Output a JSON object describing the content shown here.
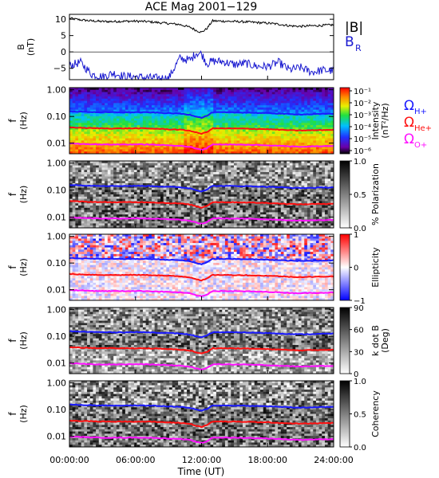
{
  "title": "ACE Mag 2001−129",
  "x_axis": {
    "label": "Time (UT)",
    "ticks": [
      "00:00:00",
      "06:00:00",
      "12:00:00",
      "18:00:00",
      "24:00:00"
    ],
    "range_hours": [
      0,
      24
    ]
  },
  "legend": {
    "b_mag": "|B|",
    "b_r_main": "B",
    "b_r_sub": "R",
    "h_main": "Ω",
    "h_sub": "H+",
    "he_main": "Ω",
    "he_sub": "He+",
    "o_main": "Ω",
    "o_sub": "O+"
  },
  "colors": {
    "b_mag": "#000000",
    "b_r": "#1a1ad0",
    "h": "#1a1aff",
    "he": "#ff1010",
    "o": "#ff10ff"
  },
  "panels": [
    {
      "id": "field",
      "ylabel": "B",
      "ylabel2": "(nT)",
      "yticks": [
        "10",
        "5",
        "0",
        "−5"
      ],
      "ylim": [
        -8.5,
        11.5
      ]
    },
    {
      "id": "intensity",
      "ylabel": "f",
      "ylabel2": "(Hz)",
      "yticks": [
        "1.00",
        "0.10",
        "0.01"
      ],
      "colorbar": {
        "title": "Intensity",
        "units": "(nT²/Hz)",
        "ticks": [
          "10⁻¹",
          "10⁻²",
          "10⁻³",
          "10⁻⁴",
          "10⁻⁵",
          "10⁻⁶"
        ],
        "scale": "rainbow"
      }
    },
    {
      "id": "polarization",
      "ylabel": "f",
      "ylabel2": "(Hz)",
      "yticks": [
        "1.00",
        "0.10",
        "0.01"
      ],
      "colorbar": {
        "title": "% Polarization",
        "units": "",
        "ticks": [
          "1.0",
          "0.5",
          "0.0"
        ],
        "scale": "gray"
      }
    },
    {
      "id": "ellipticity",
      "ylabel": "f",
      "ylabel2": "(Hz)",
      "yticks": [
        "1.00",
        "0.10",
        "0.01"
      ],
      "colorbar": {
        "title": "Ellipticity",
        "units": "",
        "ticks": [
          "1",
          "0",
          "−1"
        ],
        "scale": "bwr"
      }
    },
    {
      "id": "kdotb",
      "ylabel": "f",
      "ylabel2": "(Hz)",
      "yticks": [
        "1.00",
        "0.10",
        "0.01"
      ],
      "colorbar": {
        "title": "k dot B",
        "units": "(Deg)",
        "ticks": [
          "90",
          "60",
          "30",
          "0"
        ],
        "scale": "gray"
      }
    },
    {
      "id": "coherency",
      "ylabel": "f",
      "ylabel2": "(Hz)",
      "yticks": [
        "1.00",
        "0.10",
        "0.01"
      ],
      "colorbar": {
        "title": "Coherency",
        "units": "",
        "ticks": [
          "1.0",
          "0.5",
          "0.0"
        ],
        "scale": "gray"
      }
    }
  ],
  "chart_data": {
    "type": "line",
    "title": "ACE Mag 2001−129",
    "xlabel": "Time (UT)",
    "x_hours": [
      0,
      1,
      2,
      3,
      4,
      5,
      6,
      7,
      8,
      9,
      10,
      11,
      11.5,
      12,
      12.5,
      13,
      14,
      15,
      16,
      17,
      18,
      19,
      20,
      21,
      22,
      23,
      24
    ],
    "field_series": [
      {
        "name": "|B|",
        "values": [
          10.3,
          9.8,
          9.5,
          9.3,
          9.3,
          9.4,
          9.4,
          9.3,
          9.0,
          8.7,
          8.4,
          7.5,
          6.6,
          6.0,
          7.2,
          9.5,
          9.4,
          9.3,
          9.2,
          9.0,
          8.8,
          8.5,
          8.0,
          7.8,
          8.0,
          8.1,
          8.3
        ]
      },
      {
        "name": "BR",
        "values": [
          -4.2,
          -3.2,
          -6.8,
          -7.6,
          -6.5,
          -7.5,
          -7.6,
          -7.9,
          -8.0,
          -8.1,
          -2.0,
          -2.5,
          -0.3,
          -0.6,
          -3.6,
          -2.8,
          -3.0,
          -3.9,
          -3.5,
          -4.4,
          -4.5,
          -3.2,
          -5.5,
          -4.8,
          -6.2,
          -5.6,
          -5.8
        ]
      }
    ],
    "gyrofrequency_series": [
      {
        "name": "ΩH+",
        "values_hz": [
          0.155,
          0.15,
          0.146,
          0.143,
          0.142,
          0.142,
          0.143,
          0.142,
          0.138,
          0.132,
          0.128,
          0.115,
          0.1,
          0.09,
          0.105,
          0.143,
          0.142,
          0.141,
          0.14,
          0.136,
          0.133,
          0.128,
          0.122,
          0.119,
          0.121,
          0.124,
          0.127
        ]
      },
      {
        "name": "ΩHe+",
        "values_hz": [
          0.039,
          0.0375,
          0.0365,
          0.0358,
          0.0355,
          0.0356,
          0.0358,
          0.0355,
          0.0345,
          0.033,
          0.032,
          0.029,
          0.025,
          0.0225,
          0.026,
          0.0358,
          0.0356,
          0.0353,
          0.035,
          0.034,
          0.0333,
          0.032,
          0.0305,
          0.0298,
          0.0303,
          0.031,
          0.0318
        ]
      },
      {
        "name": "ΩO+",
        "values_hz": [
          0.0098,
          0.0094,
          0.0091,
          0.0089,
          0.0089,
          0.0089,
          0.009,
          0.0089,
          0.0086,
          0.0083,
          0.008,
          0.0072,
          0.0062,
          0.0056,
          0.0065,
          0.009,
          0.0089,
          0.0088,
          0.0087,
          0.0085,
          0.0083,
          0.008,
          0.0076,
          0.0074,
          0.0076,
          0.0077,
          0.0079
        ]
      }
    ],
    "frequency_axis": {
      "scale": "log",
      "ylim_hz": [
        0.004,
        1.2
      ]
    }
  }
}
